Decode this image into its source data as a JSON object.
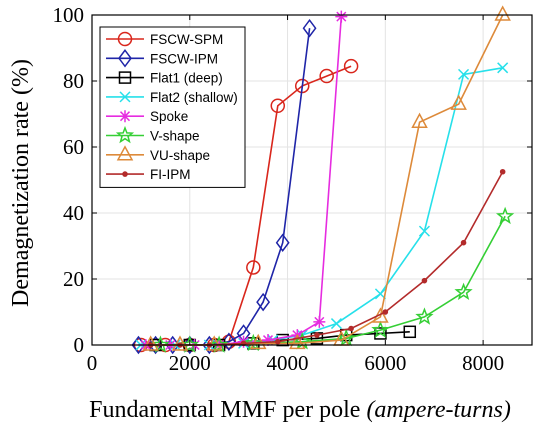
{
  "chart_data": {
    "type": "line",
    "title": "",
    "xlabel_main": "Fundamental MMF per pole ",
    "xlabel_units": "(ampere-turns)",
    "ylabel": "Demagnetization rate (%)",
    "xlim": [
      0,
      9000
    ],
    "ylim": [
      0,
      100
    ],
    "xticks": [
      0,
      2000,
      4000,
      6000,
      8000
    ],
    "yticks": [
      0,
      20,
      40,
      60,
      80,
      100
    ],
    "grid": true,
    "legend_position": "top-left",
    "series": [
      {
        "name": "FSCW-SPM",
        "color": "#d9261c",
        "marker": "circle",
        "points": [
          [
            1000,
            0
          ],
          [
            1500,
            0
          ],
          [
            2000,
            0
          ],
          [
            2500,
            0
          ],
          [
            2800,
            1
          ],
          [
            3300,
            23.5
          ],
          [
            3800,
            72.5
          ],
          [
            4300,
            78.5
          ],
          [
            4800,
            81.5
          ],
          [
            5300,
            84.5
          ]
        ]
      },
      {
        "name": "FSCW-IPM",
        "color": "#1f25a8",
        "marker": "diamond",
        "points": [
          [
            950,
            0
          ],
          [
            1300,
            0
          ],
          [
            1650,
            0
          ],
          [
            2000,
            0
          ],
          [
            2400,
            0
          ],
          [
            2800,
            1
          ],
          [
            3100,
            3.5
          ],
          [
            3500,
            13
          ],
          [
            3900,
            31
          ],
          [
            4450,
            96
          ]
        ]
      },
      {
        "name": "Flat1 (deep)",
        "color": "#000000",
        "marker": "square",
        "points": [
          [
            1300,
            0
          ],
          [
            2000,
            0
          ],
          [
            2600,
            0
          ],
          [
            3300,
            0.5
          ],
          [
            3900,
            1.5
          ],
          [
            4600,
            2
          ],
          [
            5200,
            3
          ],
          [
            5900,
            3.5
          ],
          [
            6500,
            4
          ]
        ]
      },
      {
        "name": "Flat2 (shallow)",
        "color": "#26e0ea",
        "marker": "x",
        "points": [
          [
            1000,
            0
          ],
          [
            1700,
            0
          ],
          [
            2400,
            0
          ],
          [
            3100,
            0.5
          ],
          [
            3700,
            1.5
          ],
          [
            4300,
            3
          ],
          [
            5000,
            6.5
          ],
          [
            5900,
            15.5
          ],
          [
            6800,
            34.5
          ],
          [
            7600,
            82
          ],
          [
            8400,
            84
          ]
        ]
      },
      {
        "name": "Spoke",
        "color": "#e62ce0",
        "marker": "asterisk",
        "points": [
          [
            1100,
            0
          ],
          [
            1600,
            0
          ],
          [
            2100,
            0
          ],
          [
            2600,
            0
          ],
          [
            3100,
            1
          ],
          [
            3600,
            1.5
          ],
          [
            4200,
            3
          ],
          [
            4650,
            7
          ],
          [
            5100,
            99.5
          ]
        ]
      },
      {
        "name": "V-shape",
        "color": "#35cf35",
        "marker": "star",
        "points": [
          [
            1400,
            0
          ],
          [
            2000,
            0
          ],
          [
            2600,
            0
          ],
          [
            3300,
            0.5
          ],
          [
            4300,
            1
          ],
          [
            5200,
            2
          ],
          [
            5900,
            4.5
          ],
          [
            6800,
            8.5
          ],
          [
            7600,
            16
          ],
          [
            8450,
            39
          ]
        ]
      },
      {
        "name": "VU-shape",
        "color": "#dd8a3a",
        "marker": "triangle",
        "points": [
          [
            1200,
            0
          ],
          [
            1800,
            0
          ],
          [
            2500,
            0
          ],
          [
            3400,
            0.5
          ],
          [
            4200,
            0.5
          ],
          [
            5100,
            1.5
          ],
          [
            5900,
            8.5
          ],
          [
            6700,
            67.5
          ],
          [
            7500,
            73
          ],
          [
            8400,
            100
          ]
        ]
      },
      {
        "name": "FI-IPM",
        "color": "#b32b2b",
        "marker": "dot",
        "points": [
          [
            1200,
            0
          ],
          [
            1800,
            0
          ],
          [
            2400,
            0
          ],
          [
            3100,
            0.5
          ],
          [
            3800,
            1
          ],
          [
            4600,
            3
          ],
          [
            5300,
            5
          ],
          [
            6000,
            10
          ],
          [
            6800,
            19.5
          ],
          [
            7600,
            31
          ],
          [
            8400,
            52.5
          ]
        ]
      }
    ]
  }
}
